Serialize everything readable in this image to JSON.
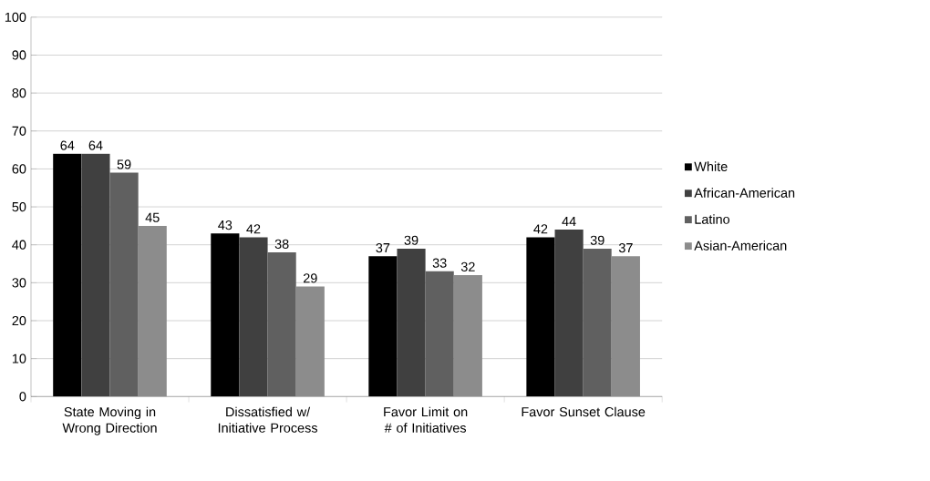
{
  "chart_data": {
    "type": "bar",
    "categories": [
      "State Moving in Wrong Direction",
      "Dissatisfied w/ Initiative Process",
      "Favor Limit on # of Initiatives",
      "Favor Sunset Clause"
    ],
    "series": [
      {
        "name": "White",
        "color": "#000000",
        "values": [
          64,
          43,
          37,
          42
        ]
      },
      {
        "name": "African-American",
        "color": "#404040",
        "values": [
          64,
          42,
          39,
          44
        ]
      },
      {
        "name": "Latino",
        "color": "#606060",
        "values": [
          59,
          38,
          33,
          39
        ]
      },
      {
        "name": "Asian-American",
        "color": "#8c8c8c",
        "values": [
          45,
          29,
          32,
          37
        ]
      }
    ],
    "ylim": [
      0,
      100
    ],
    "yticks": [
      0,
      10,
      20,
      30,
      40,
      50,
      60,
      70,
      80,
      90,
      100
    ],
    "grid": "y",
    "legend": "right",
    "data_labels": true
  }
}
